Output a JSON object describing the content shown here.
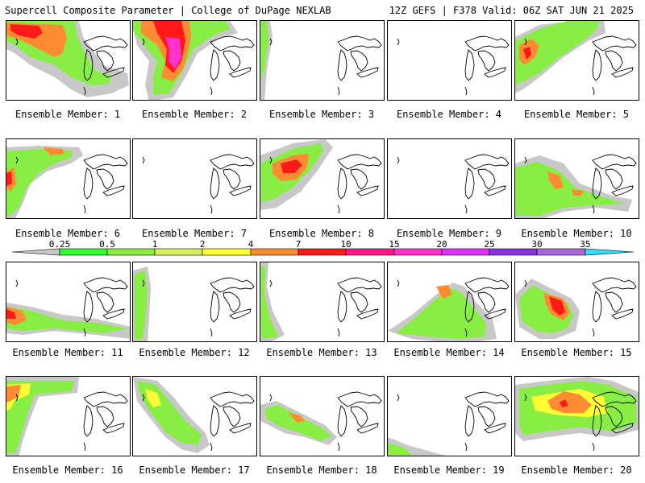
{
  "header": {
    "left_title": "Supercell Composite Parameter | College of DuPage NEXLAB",
    "right_title": "12Z GEFS | F378 Valid: 06Z SAT JUN 21 2025"
  },
  "legend": {
    "tick_labels": [
      "0.25",
      "0.5",
      "1",
      "2",
      "4",
      "7",
      "10",
      "15",
      "20",
      "25",
      "30",
      "35"
    ],
    "colors": [
      "#c8c8c8",
      "#33ff33",
      "#88ee44",
      "#d6f060",
      "#ffff33",
      "#ff8c33",
      "#ff1a1a",
      "#ff1a88",
      "#ff33cc",
      "#dd33ff",
      "#8833dd",
      "#aa66dd",
      "#33ddff"
    ]
  },
  "members": [
    {
      "label": "Ensemble Member: 1"
    },
    {
      "label": "Ensemble Member: 2"
    },
    {
      "label": "Ensemble Member: 3"
    },
    {
      "label": "Ensemble Member: 4"
    },
    {
      "label": "Ensemble Member: 5"
    },
    {
      "label": "Ensemble Member: 6"
    },
    {
      "label": "Ensemble Member: 7"
    },
    {
      "label": "Ensemble Member: 8"
    },
    {
      "label": "Ensemble Member: 9"
    },
    {
      "label": "Ensemble Member: 10"
    },
    {
      "label": "Ensemble Member: 11"
    },
    {
      "label": "Ensemble Member: 12"
    },
    {
      "label": "Ensemble Member: 13"
    },
    {
      "label": "Ensemble Member: 14"
    },
    {
      "label": "Ensemble Member: 15"
    },
    {
      "label": "Ensemble Member: 16"
    },
    {
      "label": "Ensemble Member: 17"
    },
    {
      "label": "Ensemble Member: 18"
    },
    {
      "label": "Ensemble Member: 19"
    },
    {
      "label": "Ensemble Member: 20"
    }
  ]
}
